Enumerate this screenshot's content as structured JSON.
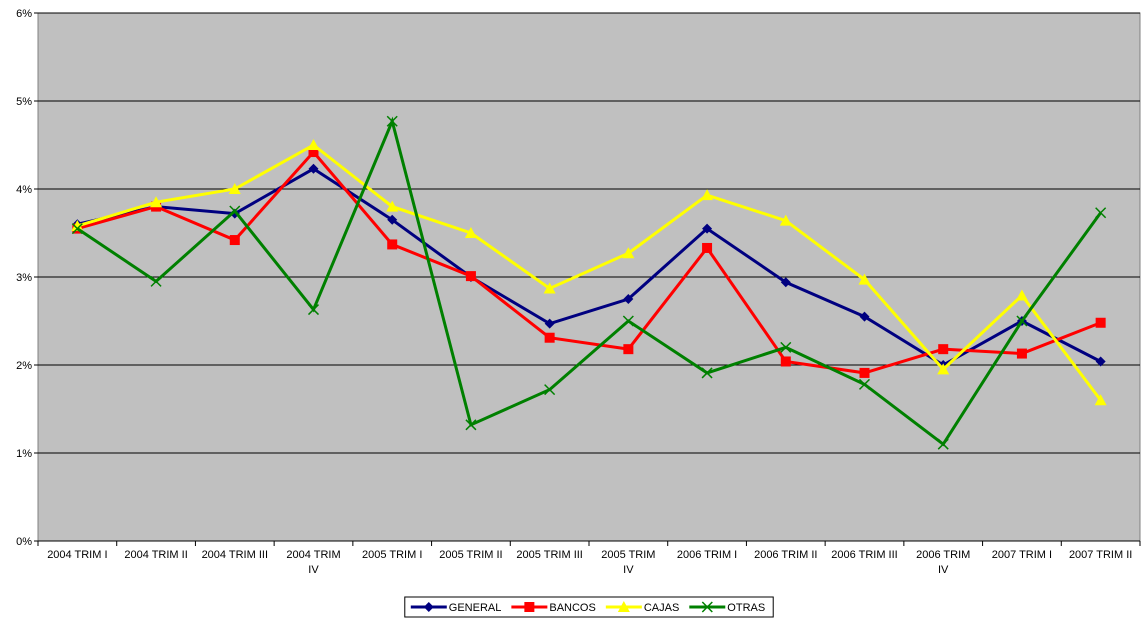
{
  "chart_data": {
    "type": "line",
    "categories": [
      "2004 TRIM I",
      "2004 TRIM II",
      "2004 TRIM III",
      "2004 TRIM IV",
      "2005 TRIM I",
      "2005 TRIM II",
      "2005 TRIM III",
      "2005 TRIM IV",
      "2006 TRIM I",
      "2006 TRIM II",
      "2006 TRIM III",
      "2006 TRIM IV",
      "2007 TRIM I",
      "2007 TRIM II"
    ],
    "series": [
      {
        "name": "GENERAL",
        "color": "#000080",
        "marker": "diamond",
        "values": [
          3.6,
          3.8,
          3.72,
          4.23,
          3.65,
          3.0,
          2.47,
          2.75,
          3.55,
          2.94,
          2.55,
          2.0,
          2.5,
          2.04
        ]
      },
      {
        "name": "BANCOS",
        "color": "#ff0000",
        "marker": "square",
        "values": [
          3.55,
          3.8,
          3.42,
          4.42,
          3.37,
          3.01,
          2.31,
          2.18,
          3.33,
          2.04,
          1.91,
          2.18,
          2.13,
          2.48
        ]
      },
      {
        "name": "CAJAS",
        "color": "#ffff00",
        "marker": "triangle",
        "values": [
          3.58,
          3.85,
          4.0,
          4.5,
          3.8,
          3.5,
          2.87,
          3.27,
          3.93,
          3.64,
          2.97,
          1.95,
          2.79,
          1.6
        ]
      },
      {
        "name": "OTRAS",
        "color": "#008000",
        "marker": "x",
        "values": [
          3.55,
          2.95,
          3.75,
          2.63,
          4.77,
          1.32,
          1.72,
          2.5,
          1.91,
          2.2,
          1.78,
          1.1,
          2.5,
          3.73
        ]
      }
    ],
    "ylim": [
      0,
      6
    ],
    "yticks": [
      {
        "value": 0,
        "label": "0%"
      },
      {
        "value": 1,
        "label": "1%"
      },
      {
        "value": 2,
        "label": "2%"
      },
      {
        "value": 3,
        "label": "3%"
      },
      {
        "value": 4,
        "label": "4%"
      },
      {
        "value": 5,
        "label": "5%"
      },
      {
        "value": 6,
        "label": "6%"
      }
    ],
    "grid": true,
    "legend": "bottom",
    "plot_background": "#c0c0c0"
  }
}
